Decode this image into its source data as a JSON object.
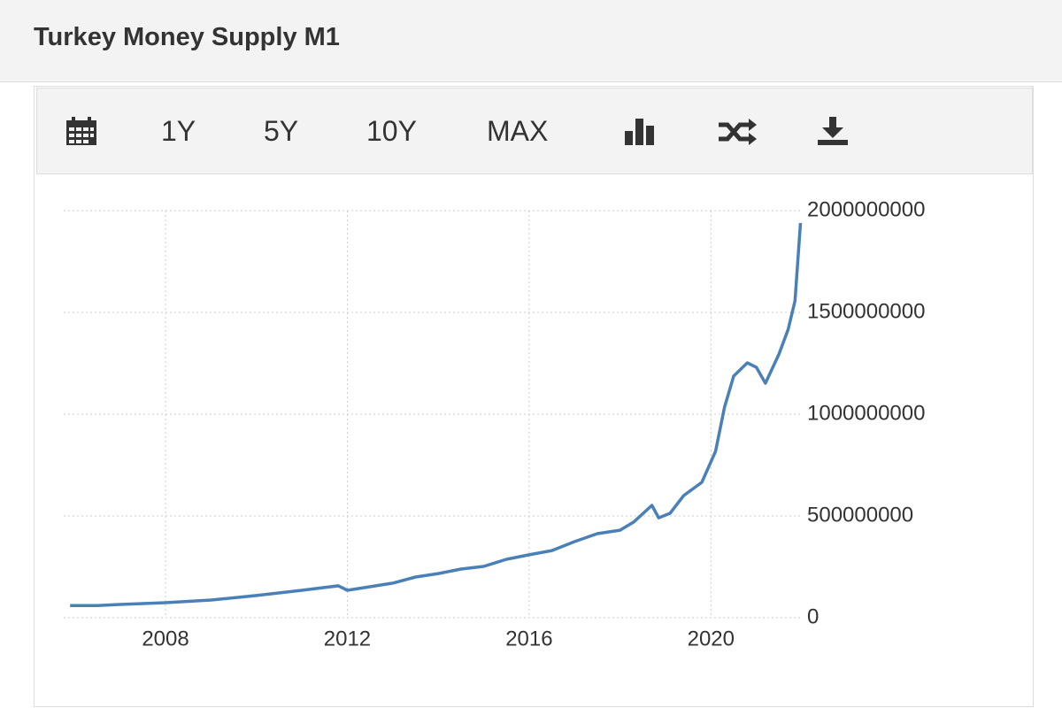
{
  "header": {
    "title": "Turkey Money Supply M1"
  },
  "toolbar": {
    "buttons": [
      "1Y",
      "5Y",
      "10Y",
      "MAX"
    ]
  },
  "chart_data": {
    "type": "line",
    "color": "#4a80b8",
    "grid": true,
    "x": [
      2005.9,
      2006.5,
      2007,
      2008,
      2009,
      2010,
      2011,
      2011.8,
      2012,
      2013,
      2013.5,
      2014,
      2014.5,
      2015,
      2015.5,
      2016,
      2016.5,
      2017,
      2017.5,
      2018,
      2018.3,
      2018.7,
      2018.85,
      2019.1,
      2019.4,
      2019.8,
      2020.1,
      2020.3,
      2020.5,
      2020.8,
      2021.0,
      2021.2,
      2021.5,
      2021.7,
      2021.85,
      2021.97
    ],
    "values": [
      60000000,
      60000000,
      65000000,
      74000000,
      87000000,
      109000000,
      135000000,
      157000000,
      135000000,
      170000000,
      200000000,
      217000000,
      239000000,
      252000000,
      287000000,
      309000000,
      330000000,
      374000000,
      413000000,
      430000000,
      470000000,
      552000000,
      491000000,
      513000000,
      600000000,
      665000000,
      817000000,
      1035000000,
      1187000000,
      1252000000,
      1230000000,
      1152000000,
      1296000000,
      1417000000,
      1557000000,
      1939000000
    ],
    "xlim": [
      2005.76,
      2021.98
    ],
    "xticks": [
      2008,
      2012,
      2016,
      2020
    ],
    "ylim": [
      0,
      2000000000
    ],
    "yticks": [
      0,
      500000000,
      1000000000,
      1500000000,
      2000000000
    ]
  }
}
